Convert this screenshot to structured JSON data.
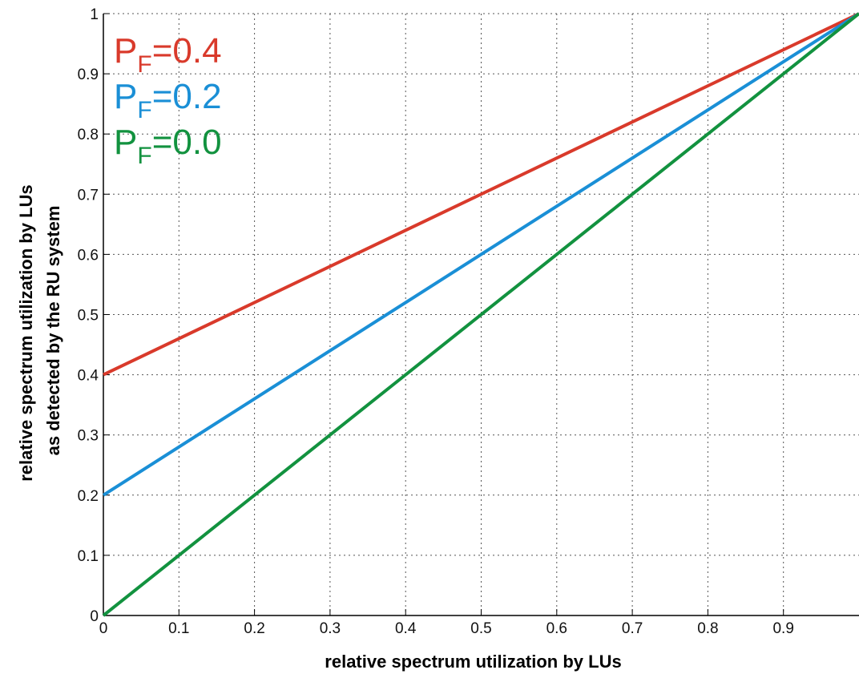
{
  "chart_data": {
    "type": "line",
    "title": "",
    "xlabel": "relative spectrum utilization by LUs",
    "ylabel_lines": [
      "relative spectrum utilization by LUs",
      "as detected by the RU system"
    ],
    "xlim": [
      0,
      1
    ],
    "ylim": [
      0,
      1
    ],
    "grid": true,
    "legend_position": "top-left",
    "x_ticks": [
      0,
      0.1,
      0.2,
      0.3,
      0.4,
      0.5,
      0.6,
      0.7,
      0.8,
      0.9
    ],
    "x_tick_labels": [
      "0",
      "0.1",
      "0.2",
      "0.3",
      "0.4",
      "0.5",
      "0.6",
      "0.7",
      "0.8",
      "0.9"
    ],
    "y_ticks": [
      0,
      0.1,
      0.2,
      0.3,
      0.4,
      0.5,
      0.6,
      0.7,
      0.8,
      0.9,
      1
    ],
    "y_tick_labels": [
      "0",
      "0.1",
      "0.2",
      "0.3",
      "0.4",
      "0.5",
      "0.6",
      "0.7",
      "0.8",
      "0.9",
      "1"
    ],
    "series": [
      {
        "legend_main": "P",
        "legend_sub": "F",
        "legend_value": "=0.4",
        "color": "#d93a2b",
        "x": [
          0,
          1
        ],
        "y": [
          0.4,
          1
        ]
      },
      {
        "legend_main": "P",
        "legend_sub": "F",
        "legend_value": "=0.2",
        "color": "#1a8fd6",
        "x": [
          0,
          1
        ],
        "y": [
          0.2,
          1
        ]
      },
      {
        "legend_main": "P",
        "legend_sub": "F",
        "legend_value": "=0.0",
        "color": "#12923f",
        "x": [
          0,
          1
        ],
        "y": [
          0,
          1
        ]
      }
    ]
  }
}
